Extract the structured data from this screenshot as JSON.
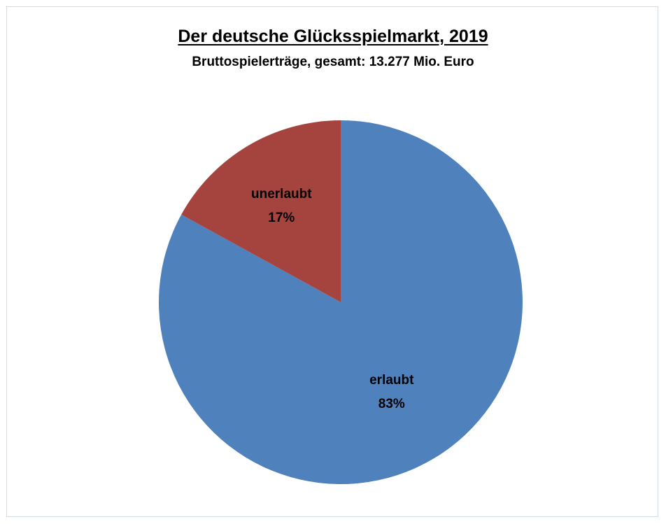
{
  "chart_data": {
    "type": "pie",
    "title": "Der deutsche Glücksspielmarkt, 2019",
    "subtitle": "Bruttospielerträge, gesamt: 13.277 Mio. Euro",
    "slices": [
      {
        "label": "erlaubt",
        "value": 83,
        "display": "83%",
        "color": "#4f81bd"
      },
      {
        "label": "unerlaubt",
        "value": 17,
        "display": "17%",
        "color": "#a5443f"
      }
    ],
    "start_angle_deg": 0,
    "direction": "clockwise",
    "legend": "none"
  }
}
